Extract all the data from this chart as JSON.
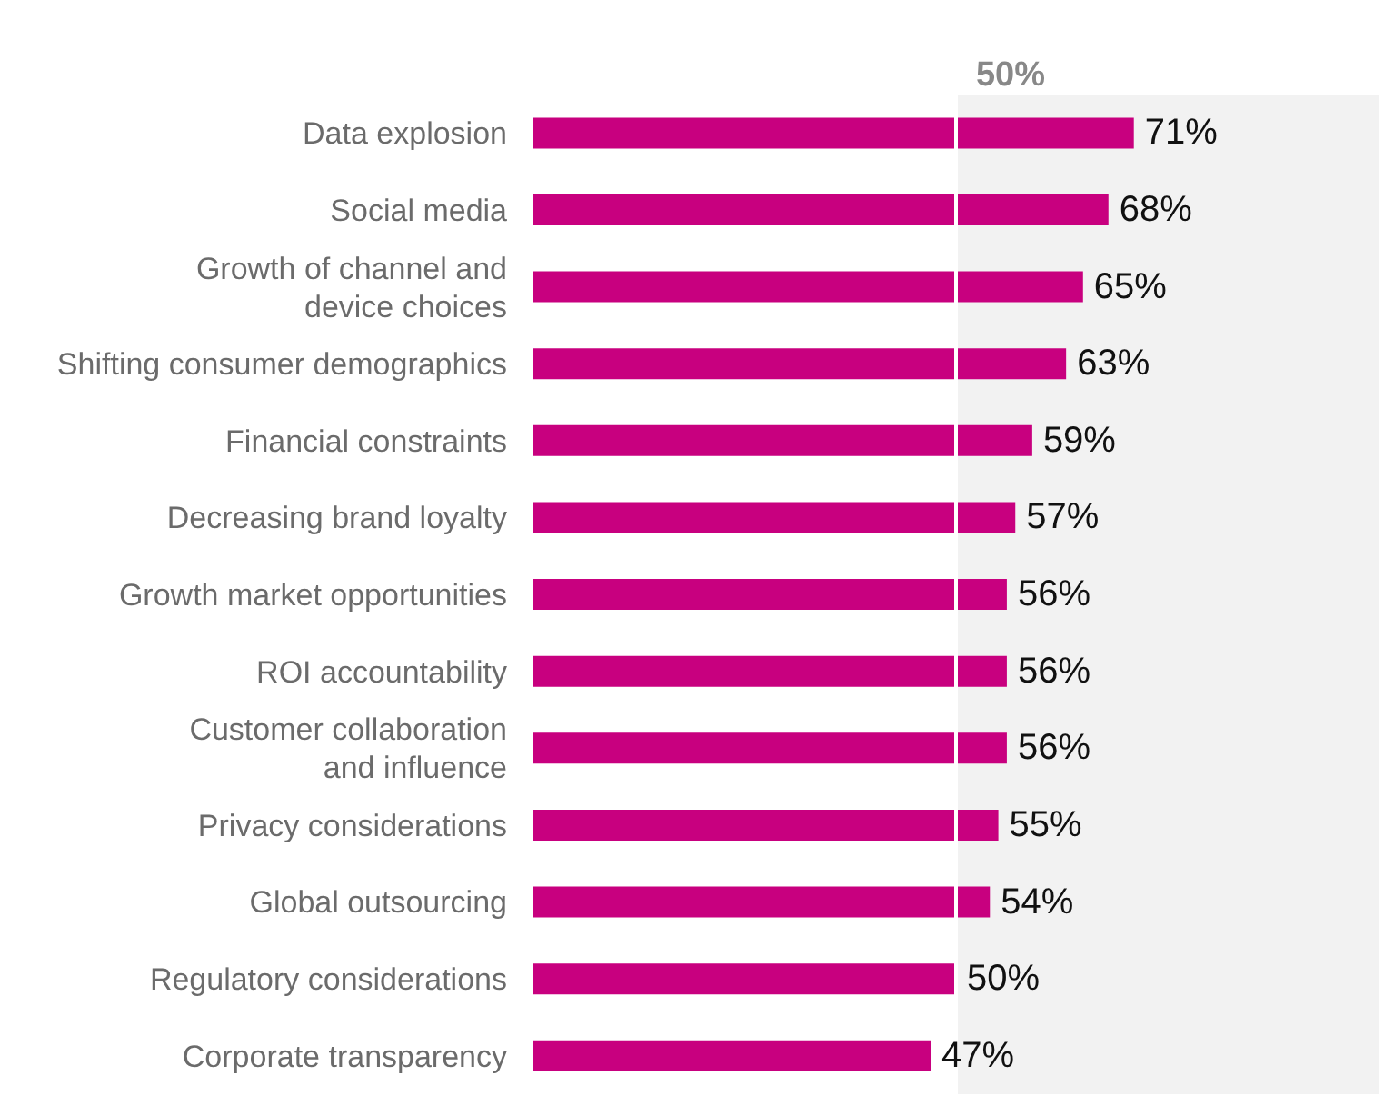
{
  "chart_data": {
    "type": "bar",
    "orientation": "horizontal",
    "categories": [
      "Data explosion",
      "Social media",
      "Growth of channel and device choices",
      "Shifting consumer demographics",
      "Financial constraints",
      "Decreasing brand loyalty",
      "Growth market opportunities",
      "ROI accountability",
      "Customer collaboration and influence",
      "Privacy considerations",
      "Global outsourcing",
      "Regulatory considerations",
      "Corporate transparency"
    ],
    "series": [
      {
        "color": "#c8007f",
        "values": [
          71,
          68,
          65,
          63,
          59,
          57,
          56,
          56,
          56,
          55,
          54,
          50,
          47
        ],
        "value_labels": [
          "71%",
          "68%",
          "65%",
          "63%",
          "59%",
          "57%",
          "56%",
          "56%",
          "56%",
          "55%",
          "54%",
          "50%",
          "47%"
        ]
      }
    ],
    "xlim": [
      0,
      100
    ],
    "tick_labels": "y",
    "grid": false,
    "legend": false,
    "ref_lines": [
      {
        "axis": "x",
        "value": 50,
        "label": "50%",
        "color": "#ffffff"
      }
    ],
    "bands": [
      {
        "axis": "x",
        "from": 50,
        "to": 100,
        "color": "#f2f2f2"
      }
    ]
  }
}
